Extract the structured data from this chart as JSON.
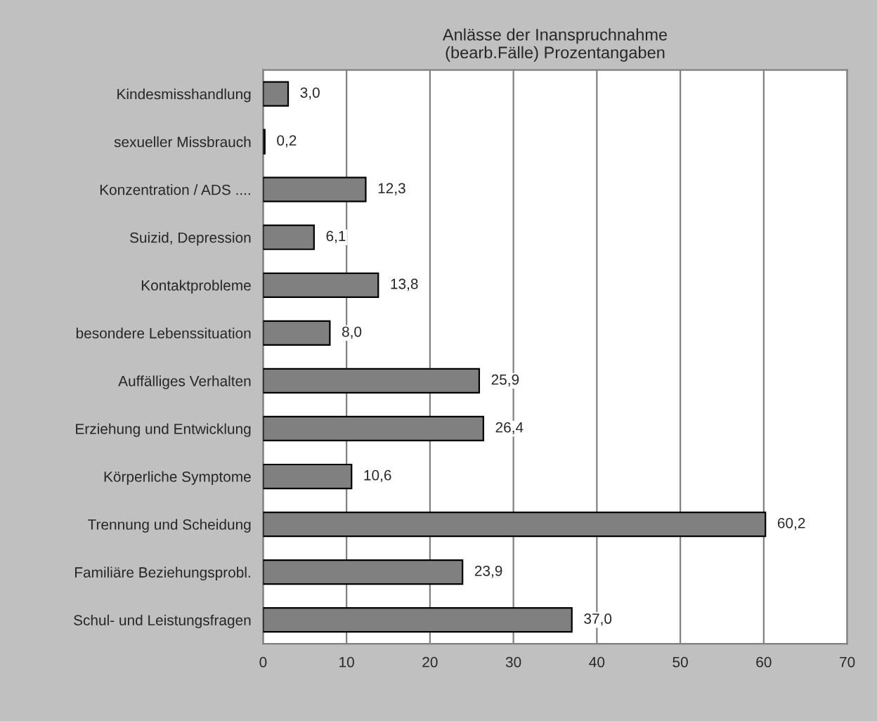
{
  "chart_data": {
    "type": "bar",
    "orientation": "horizontal",
    "title": "Anlässe der Inanspruchnahme\n(bearb.Fälle) Prozentangaben",
    "categories": [
      "Kindesmisshandlung",
      "sexueller Missbrauch",
      "Konzentration / ADS ....",
      "Suizid, Depression",
      "Kontaktprobleme",
      "besondere Lebenssituation",
      "Auffälliges Verhalten",
      "Erziehung und Entwicklung",
      "Körperliche Symptome",
      "Trennung und Scheidung",
      "Familiäre Beziehungsprobl.",
      "Schul- und Leistungsfragen"
    ],
    "values": [
      3.0,
      0.2,
      12.3,
      6.1,
      13.8,
      8.0,
      25.9,
      26.4,
      10.6,
      60.2,
      23.9,
      37.0
    ],
    "value_labels": [
      "3,0",
      "0,2",
      "12,3",
      "6,1",
      "13,8",
      "8,0",
      "25,9",
      "26,4",
      "10,6",
      "60,2",
      "23,9",
      "37,0"
    ],
    "color": "#808080",
    "xlim": [
      0,
      70
    ],
    "xticks": [
      0,
      10,
      20,
      30,
      40,
      50,
      60,
      70
    ],
    "grid": "x"
  }
}
